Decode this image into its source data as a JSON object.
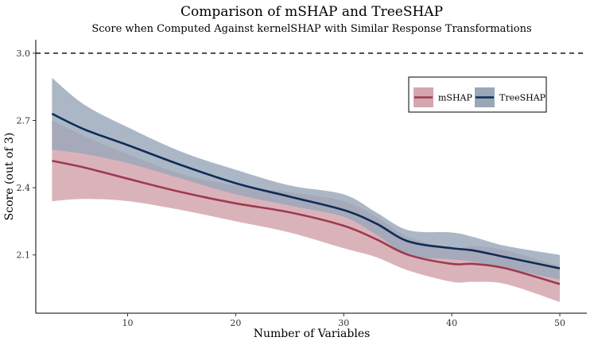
{
  "chart_data": {
    "type": "line",
    "title": "Comparison of mSHAP and TreeSHAP",
    "subtitle": "Score when Computed Against kernelSHAP with Similar Response Transformations",
    "xlabel": "Number of Variables",
    "ylabel": "Score (out of 3)",
    "xlim": [
      1.5,
      52.5
    ],
    "ylim": [
      1.84,
      3.06
    ],
    "xticks": [
      10,
      20,
      30,
      40,
      50
    ],
    "yticks": [
      2.1,
      2.4,
      2.7,
      3.0
    ],
    "ytick_labels": [
      "2.1",
      "2.4",
      "2.7",
      "3.0"
    ],
    "reference_line": {
      "y": 3.0,
      "style": "dashed"
    },
    "legend_position": "top-right",
    "series": [
      {
        "name": "mSHAP",
        "color": "#9e3b4f",
        "band_color": "#d4a6ae",
        "x": [
          3,
          6,
          10,
          15,
          20,
          25,
          30,
          33,
          36,
          40,
          42,
          45,
          50
        ],
        "y": [
          2.52,
          2.49,
          2.44,
          2.38,
          2.33,
          2.29,
          2.23,
          2.17,
          2.1,
          2.06,
          2.06,
          2.04,
          1.97
        ],
        "lower": [
          2.34,
          2.35,
          2.34,
          2.3,
          2.25,
          2.2,
          2.13,
          2.09,
          2.03,
          1.98,
          1.98,
          1.97,
          1.89
        ],
        "upper": [
          2.7,
          2.63,
          2.55,
          2.46,
          2.41,
          2.38,
          2.34,
          2.27,
          2.18,
          2.13,
          2.14,
          2.12,
          2.05
        ]
      },
      {
        "name": "TreeSHAP",
        "color": "#0e2c55",
        "band_color": "#9aa7b9",
        "x": [
          3,
          6,
          10,
          15,
          20,
          25,
          30,
          33,
          36,
          40,
          42,
          45,
          50
        ],
        "y": [
          2.73,
          2.66,
          2.59,
          2.5,
          2.42,
          2.36,
          2.3,
          2.24,
          2.16,
          2.13,
          2.12,
          2.09,
          2.04
        ],
        "lower": [
          2.57,
          2.55,
          2.51,
          2.44,
          2.37,
          2.32,
          2.27,
          2.19,
          2.1,
          2.08,
          2.07,
          2.04,
          1.99
        ],
        "upper": [
          2.89,
          2.77,
          2.67,
          2.56,
          2.48,
          2.41,
          2.37,
          2.29,
          2.21,
          2.2,
          2.18,
          2.14,
          2.1
        ]
      }
    ]
  }
}
